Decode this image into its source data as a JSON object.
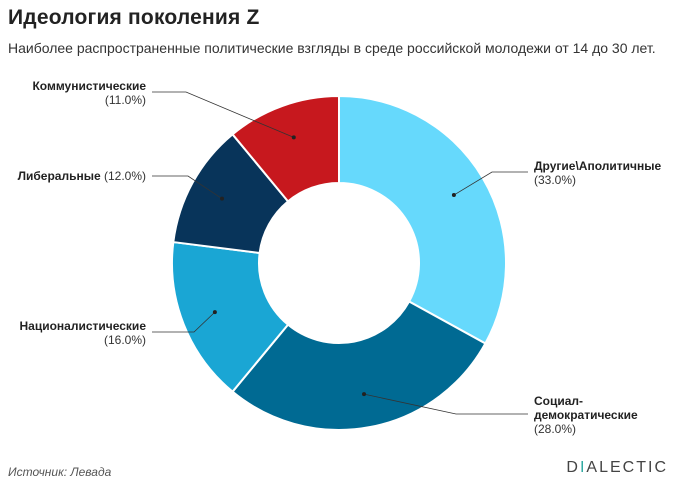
{
  "chart_data": {
    "type": "pie",
    "variant": "donut",
    "title": "Идеология поколения Z",
    "subtitle": "Наиболее распространенные политические взгляды в среде российской молодежи от 14 до 30 лет.",
    "slices": [
      {
        "label": "Другие\\Аполитичные",
        "value": 33.0,
        "display": "(33.0%)",
        "color": "#66d9fc"
      },
      {
        "label": "Социал-демократические",
        "label_lines": [
          "Социал-",
          "демократические"
        ],
        "value": 28.0,
        "display": "(28.0%)",
        "color": "#006a93"
      },
      {
        "label": "Националистические",
        "value": 16.0,
        "display": "(16.0%)",
        "color": "#1aa6d4"
      },
      {
        "label": "Либеральные",
        "value": 12.0,
        "display": "(12.0%)",
        "color": "#08345a"
      },
      {
        "label": "Коммунистические",
        "value": 11.0,
        "display": "(11.0%)",
        "color": "#c7181e"
      }
    ]
  },
  "footer": {
    "source": "Источник: Левада",
    "brand_first": "D",
    "brand_accent": "I",
    "brand_rest": "ALECTIC"
  }
}
